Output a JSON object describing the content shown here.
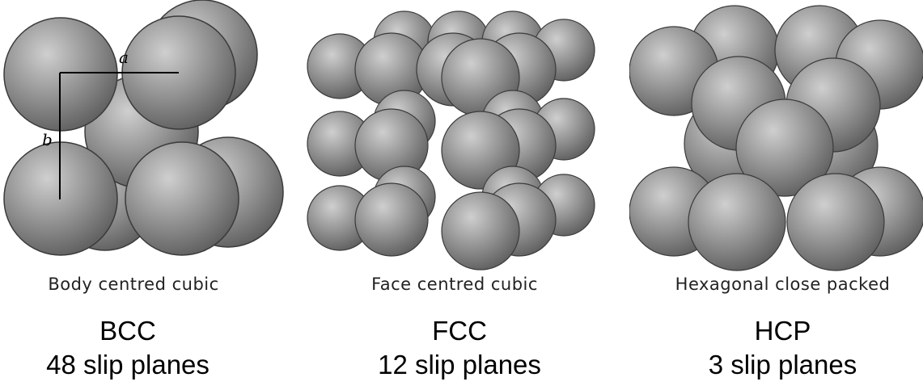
{
  "panels": [
    {
      "caption": "Body centred cubic",
      "abbr": "BCC",
      "slip": "48 slip planes",
      "axis_a": "a",
      "axis_b": "b"
    },
    {
      "caption": "Face centred cubic",
      "abbr": "FCC",
      "slip": "12 slip planes"
    },
    {
      "caption": "Hexagonal close packed",
      "abbr": "HCP",
      "slip": "3 slip planes"
    }
  ],
  "colors": {
    "sphere_light": "#c7c7c7",
    "sphere_mid": "#8e8e8e",
    "sphere_dark": "#555555",
    "edge": "#3a3a3a"
  }
}
